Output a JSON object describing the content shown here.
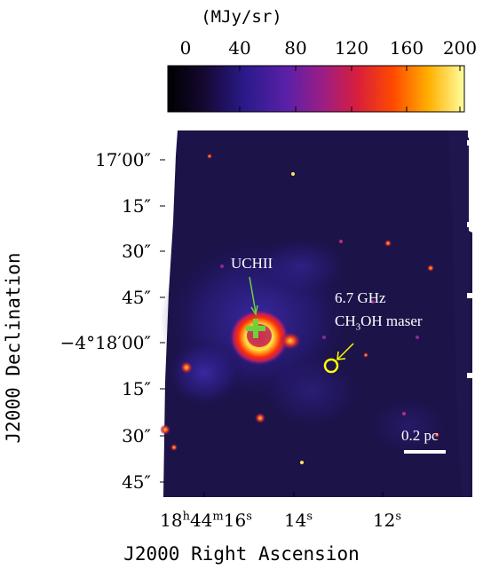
{
  "chart_data": {
    "type": "heatmap",
    "colorbar": {
      "unit_label": "(MJy/sr)",
      "ticks": [
        "0",
        "40",
        "80",
        "120",
        "160",
        "200"
      ],
      "range": [
        0,
        200
      ],
      "colormap": [
        "#000000",
        "#1a0a55",
        "#3c1ea0",
        "#7a1e9a",
        "#c41e5a",
        "#ff3a00",
        "#ff9a00",
        "#ffff60",
        "#ffffff"
      ]
    },
    "xlabel": "J2000 Right Ascension",
    "ylabel": "J2000 Declination",
    "y_ticks": [
      "17′00″",
      "15″",
      "30″",
      "45″",
      "−4°18′00″",
      "15″",
      "30″",
      "45″"
    ],
    "x_ticks": [
      {
        "h": "18",
        "m": "44",
        "s": "16"
      },
      {
        "s": "14"
      },
      {
        "s": "12"
      }
    ],
    "annotations": {
      "uchii": "UCHII",
      "maser_line1": "6.7 GHz",
      "maser_formula_prefix": "CH",
      "maser_formula_sub": "3",
      "maser_formula_suffix": "OH maser",
      "scalebar": "0.2 pc"
    },
    "marker_colors": {
      "uchii": "#6fd13a",
      "maser": "#ffff00"
    }
  }
}
